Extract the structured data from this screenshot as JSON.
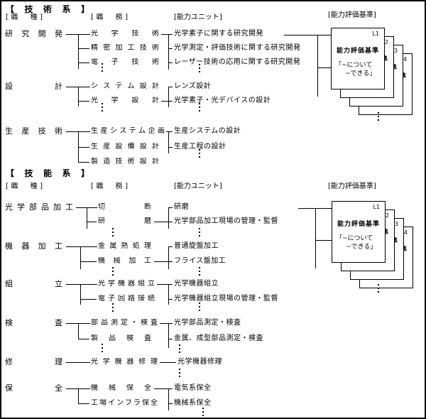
{
  "sections": [
    {
      "title": "【技術系】",
      "headers": {
        "job": "[職　種]",
        "duty": "[職　務]",
        "unit": "[能力ユニット]",
        "standard": "[能力評価基準]"
      },
      "groups": [
        {
          "job": "研究開発",
          "duties": [
            "光学技術",
            "精密加工技術",
            "電子技術"
          ],
          "units": [
            "光学素子に関する研究開発",
            "光学測定・評価技術に関する研究開発",
            "レーザー技術の応用に関する研究開発"
          ]
        },
        {
          "job": "設計",
          "duties": [
            "システム設計",
            "光学設計"
          ],
          "units": [
            "レンズ設計",
            "光学素子・光デバイスの設計"
          ]
        },
        {
          "job": "生産技術",
          "duties": [
            "生産システム企画",
            "生産設備設計",
            "製造技術設計"
          ],
          "units": [
            "生産システムの設計",
            "生産工程の設計"
          ]
        }
      ],
      "card": {
        "labels": [
          "L1",
          "L2",
          "L3",
          "L4"
        ],
        "title": "能力評価基準",
        "quote_line1": "「~について",
        "quote_line2": "~できる」"
      }
    },
    {
      "title": "【技能系】",
      "headers": {
        "job": "[職　種]",
        "duty": "[職　務]",
        "unit": "[能力ユニット]",
        "standard": "[能力評価基準]"
      },
      "groups": [
        {
          "job": "光学部品加工",
          "duties": [
            "切断",
            "研磨"
          ],
          "units": [
            "研磨",
            "光学部品加工現場の管理・監督"
          ]
        },
        {
          "job": "機器加工",
          "duties": [
            "金属熱処理",
            "機械加工"
          ],
          "units": [
            "普通旋盤加工",
            "フライス盤加工"
          ]
        },
        {
          "job": "組立",
          "duties": [
            "光学機器組立",
            "電子回路接続"
          ],
          "units": [
            "光学機器組立",
            "光学機器組立現場の管理・監督"
          ]
        },
        {
          "job": "検査",
          "duties": [
            "部品測定・検査",
            "製品検査"
          ],
          "units": [
            "光学部品測定・検査",
            "金属、成型部品測定・検査"
          ]
        },
        {
          "job": "修理",
          "duties": [
            "光学機器修理"
          ],
          "units": [
            "光学機器修理"
          ]
        },
        {
          "job": "保全",
          "duties": [
            "機械保全",
            "工場インフラ保全"
          ],
          "units": [
            "電気系保全",
            "機械系保全"
          ]
        }
      ],
      "card": {
        "labels": [
          "L1",
          "L2",
          "L3",
          "L4"
        ],
        "title": "能力評価基準",
        "quote_line1": "「~について",
        "quote_line2": "~できる」"
      }
    }
  ],
  "colors": {
    "ink": "#000000",
    "paper": "#ffffff"
  }
}
